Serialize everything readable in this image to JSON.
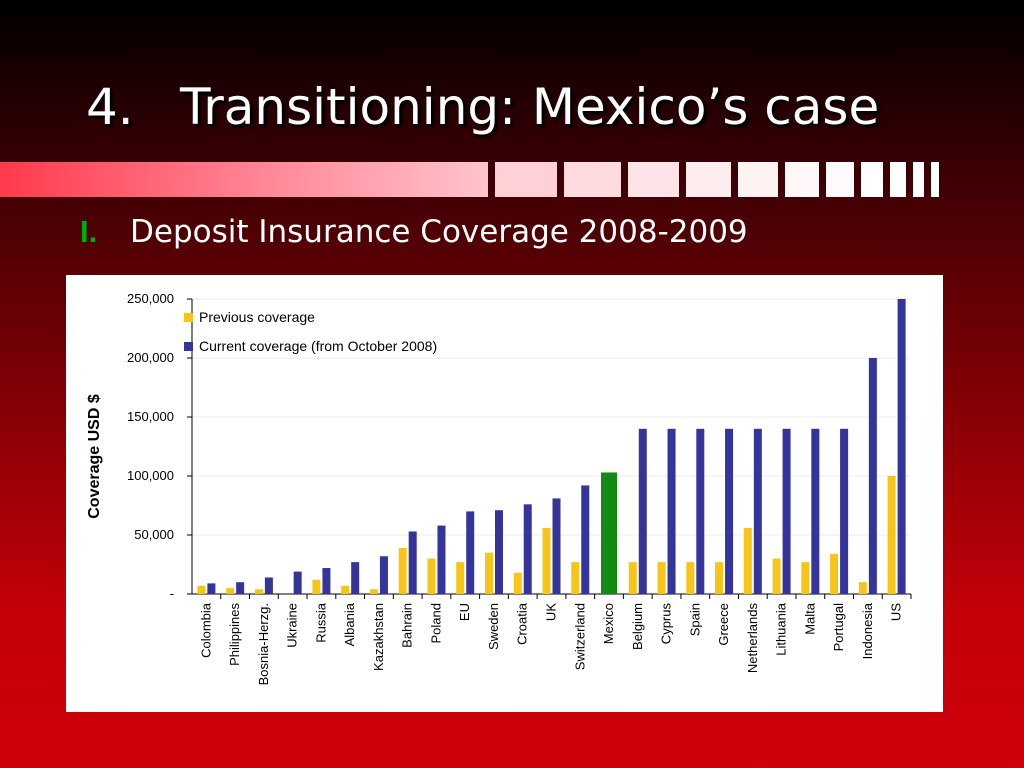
{
  "slide": {
    "title_number": "4.",
    "title_text": "Transitioning: Mexico’s case",
    "subtitle_marker": "I.",
    "subtitle_text": "Deposit Insurance Coverage 2008-2009"
  },
  "colors": {
    "previous": "#f7c518",
    "current": "#34349a",
    "highlight": "#138a13",
    "marker": "#00b000"
  },
  "chart_data": {
    "type": "bar",
    "title": "",
    "ylabel": "Coverage USD $",
    "ylim": [
      0,
      250000
    ],
    "yticks": [
      0,
      50000,
      100000,
      150000,
      200000,
      250000
    ],
    "ytick_labels": [
      "-",
      "50,000",
      "100,000",
      "150,000",
      "200,000",
      "250,000"
    ],
    "legend_position": "top-left",
    "categories": [
      "Colombia",
      "Philippines",
      "Bosnia-Herzg.",
      "Ukraine",
      "Russia",
      "Albania",
      "Kazakhstan",
      "Bahrain",
      "Poland",
      "EU",
      "Sweden",
      "Croatia",
      "UK",
      "Switzerland",
      "Mexico",
      "Belgium",
      "Cyprus",
      "Spain",
      "Greece",
      "Netherlands",
      "Lithuania",
      "Malta",
      "Portugal",
      "Indonesia",
      "US"
    ],
    "series": [
      {
        "name": "Previous coverage",
        "values": [
          7000,
          5000,
          4000,
          0,
          12000,
          7000,
          4000,
          39000,
          30000,
          27000,
          35000,
          18000,
          56000,
          27000,
          0,
          27000,
          27000,
          27000,
          27000,
          56000,
          30000,
          27000,
          34000,
          10000,
          100000
        ]
      },
      {
        "name": "Current coverage (from October 2008)",
        "values": [
          9000,
          10000,
          14000,
          19000,
          22000,
          27000,
          32000,
          53000,
          58000,
          70000,
          71000,
          76000,
          81000,
          92000,
          0,
          140000,
          140000,
          140000,
          140000,
          140000,
          140000,
          140000,
          140000,
          200000,
          250000
        ]
      }
    ],
    "highlight": {
      "category": "Mexico",
      "value": 103000
    }
  }
}
